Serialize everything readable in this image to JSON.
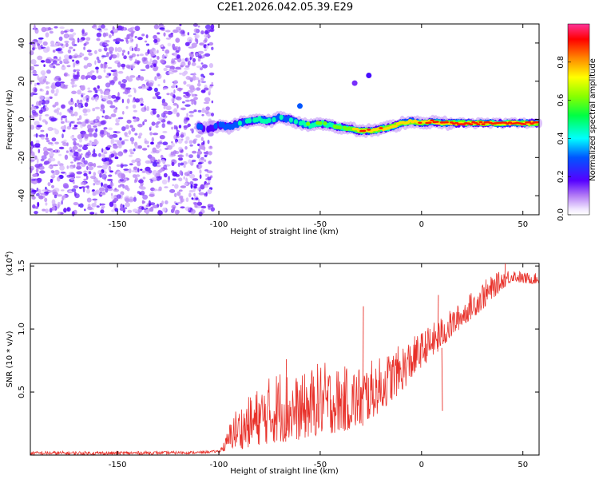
{
  "title": "C2E1.2026.042.05.39.E29",
  "colors": {
    "line": "#e8312a",
    "noise": "#7b2cf0",
    "frame": "#000000"
  },
  "chart_data": [
    {
      "type": "heatmap",
      "name": "spectrogram",
      "xlabel": "Height of straight line (km)",
      "ylabel": "Frequency (Hz)",
      "xlim": [
        -193,
        58
      ],
      "ylim": [
        -50,
        50
      ],
      "xticks": [
        -150,
        -100,
        -50,
        0,
        50
      ],
      "xtick_labels": [
        "-150",
        "-100",
        "-50",
        "0",
        "50"
      ],
      "yticks": [
        -40,
        -20,
        0,
        20,
        40
      ],
      "ytick_labels": [
        "-40",
        "-20",
        "0",
        "20",
        "40"
      ],
      "colorbar": {
        "label": "Normalized spectral amplitude",
        "range": [
          0,
          1
        ],
        "ticks": [
          0.0,
          0.2,
          0.4,
          0.6,
          0.8
        ],
        "tick_labels": [
          "0.0",
          "0.2",
          "0.4",
          "0.6",
          "0.8"
        ]
      },
      "noise_region_x": [
        -193,
        -103
      ],
      "ridge": {
        "x": [
          -110,
          -105,
          -100,
          -95,
          -90,
          -85,
          -80,
          -75,
          -70,
          -65,
          -60,
          -55,
          -50,
          -45,
          -40,
          -35,
          -30,
          -25,
          -20,
          -15,
          -10,
          -5,
          0,
          5,
          10,
          15,
          20,
          30,
          40,
          50,
          58
        ],
        "freq": [
          -4,
          -5,
          -3,
          -4,
          -2,
          -1,
          0,
          -1,
          1,
          0,
          -2,
          -3,
          -2,
          -3,
          -4,
          -5,
          -6,
          -6,
          -5,
          -4,
          -2,
          -1,
          -2,
          -1,
          -2,
          -2,
          -2,
          -2,
          -2,
          -2,
          -2
        ],
        "amplitude": [
          0.3,
          0.25,
          0.35,
          0.4,
          0.45,
          0.45,
          0.5,
          0.45,
          0.5,
          0.45,
          0.5,
          0.55,
          0.6,
          0.6,
          0.65,
          0.7,
          0.85,
          0.85,
          0.9,
          0.8,
          0.9,
          0.85,
          0.9,
          0.9,
          0.95,
          0.95,
          1.0,
          1.0,
          1.0,
          1.0,
          1.0
        ]
      },
      "outliers": [
        {
          "x": -60,
          "freq": 7,
          "amplitude": 0.3
        },
        {
          "x": -33,
          "freq": 19,
          "amplitude": 0.15
        },
        {
          "x": -26,
          "freq": 23,
          "amplitude": 0.2
        }
      ]
    },
    {
      "type": "line",
      "name": "snr",
      "xlabel": "Height of straight line (km)",
      "ylabel": "SNR (10 * v/v)",
      "y_multiplier_label": "(x10",
      "y_multiplier_exponent": "4",
      "y_multiplier_close": ")",
      "xlim": [
        -193,
        58
      ],
      "ylim": [
        0,
        1.52
      ],
      "xticks": [
        -150,
        -100,
        -50,
        0,
        50
      ],
      "xtick_labels": [
        "-150",
        "-100",
        "-50",
        "0",
        "50"
      ],
      "yticks": [
        0.5,
        1.0,
        1.5
      ],
      "ytick_labels": [
        "0.5",
        "1.0",
        "1.5"
      ],
      "envelope": {
        "x": [
          -193,
          -150,
          -110,
          -100,
          -97,
          -93,
          -88,
          -80,
          -70,
          -60,
          -50,
          -40,
          -30,
          -20,
          -10,
          0,
          10,
          20,
          30,
          40,
          45,
          50,
          58
        ],
        "low": [
          0.0,
          0.0,
          0.01,
          0.02,
          0.03,
          0.05,
          0.05,
          0.08,
          0.1,
          0.12,
          0.16,
          0.18,
          0.22,
          0.35,
          0.5,
          0.7,
          0.85,
          1.02,
          1.15,
          1.32,
          1.38,
          1.36,
          1.36
        ],
        "high": [
          0.03,
          0.03,
          0.03,
          0.04,
          0.12,
          0.35,
          0.42,
          0.55,
          0.7,
          0.62,
          0.75,
          0.7,
          0.72,
          0.78,
          0.88,
          0.98,
          1.1,
          1.22,
          1.38,
          1.47,
          1.48,
          1.45,
          1.44
        ]
      },
      "spikes": [
        {
          "x": -67,
          "y": 0.76
        },
        {
          "x": -29,
          "y": 1.18
        },
        {
          "x": 10,
          "y": 0.35
        },
        {
          "x": 8,
          "y": 1.27
        },
        {
          "x": 41,
          "y": 1.52
        }
      ]
    }
  ]
}
